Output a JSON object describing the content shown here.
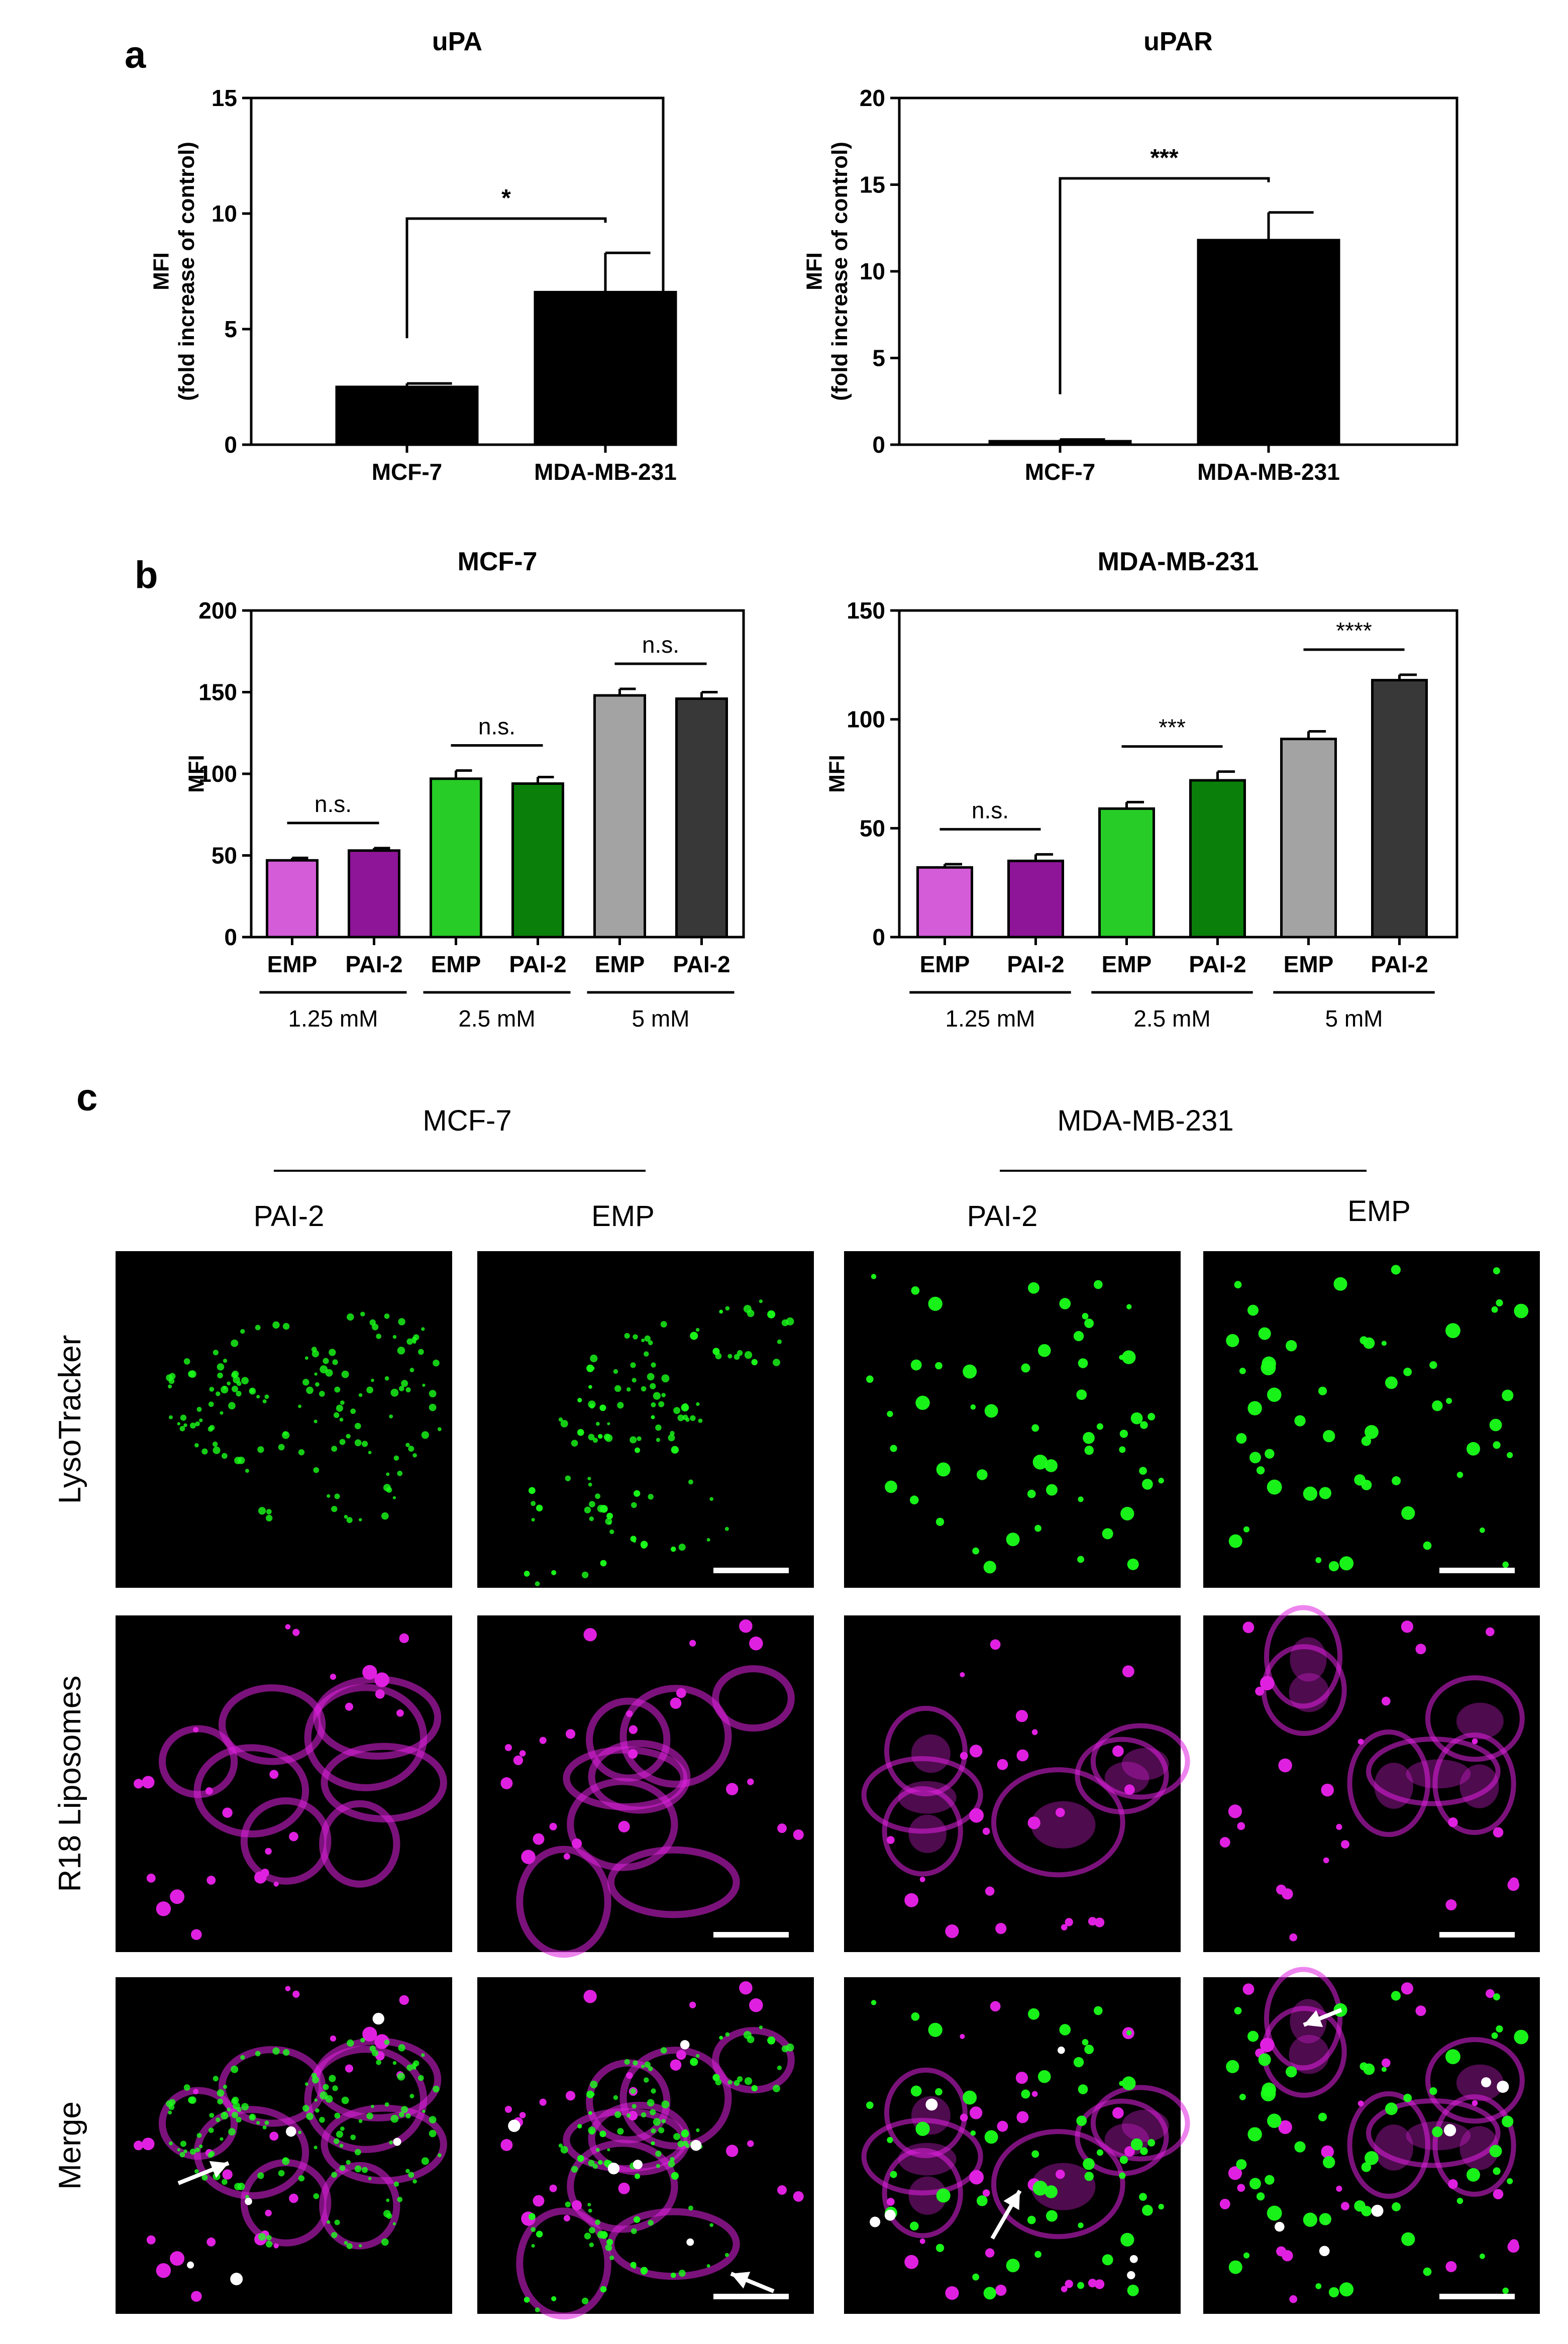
{
  "panel_labels": {
    "a": "a",
    "b": "b",
    "c": "c"
  },
  "chart_data": [
    {
      "type": "bar",
      "panel": "a",
      "title": "uPA",
      "ylabel": [
        "MFI",
        "(fold increase of control)"
      ],
      "categories": [
        "MCF-7",
        "MDA-MB-231"
      ],
      "values": [
        2.5,
        6.6
      ],
      "errors": [
        0.15,
        1.7
      ],
      "ylim": [
        0,
        15
      ],
      "yticks": [
        0,
        5,
        10,
        15
      ],
      "bar_colors": [
        "#000000",
        "#000000"
      ],
      "significance": [
        {
          "from": 0,
          "to": 1,
          "label": "*"
        }
      ],
      "grid": false
    },
    {
      "type": "bar",
      "panel": "a",
      "title": "uPAR",
      "ylabel": [
        "MFI",
        "(fold increase of control)"
      ],
      "categories": [
        "MCF-7",
        "MDA-MB-231"
      ],
      "values": [
        0.2,
        11.8
      ],
      "errors": [
        0.1,
        1.6
      ],
      "ylim": [
        0,
        20
      ],
      "yticks": [
        0,
        5,
        10,
        15,
        20
      ],
      "bar_colors": [
        "#000000",
        "#000000"
      ],
      "significance": [
        {
          "from": 0,
          "to": 1,
          "label": "***"
        }
      ],
      "grid": false
    },
    {
      "type": "bar",
      "panel": "b",
      "title": "MCF-7",
      "ylabel": [
        "MFI"
      ],
      "categories": [
        "EMP",
        "PAI-2",
        "EMP",
        "PAI-2",
        "EMP",
        "PAI-2"
      ],
      "values": [
        47,
        53,
        97,
        94,
        148,
        146
      ],
      "errors": [
        1.5,
        1.5,
        5,
        4,
        4,
        4
      ],
      "ylim": [
        0,
        200
      ],
      "yticks": [
        0,
        50,
        100,
        150,
        200
      ],
      "bar_colors": [
        "#d45cd8",
        "#8e1598",
        "#27cc27",
        "#0a800a",
        "#a3a3a3",
        "#383838"
      ],
      "groups": [
        {
          "label": "1.25 mM",
          "from": 0,
          "to": 1
        },
        {
          "label": "2.5 mM",
          "from": 2,
          "to": 3
        },
        {
          "label": "5 mM",
          "from": 4,
          "to": 5
        }
      ],
      "significance": [
        {
          "from": 0,
          "to": 1,
          "label": "n.s."
        },
        {
          "from": 2,
          "to": 3,
          "label": "n.s."
        },
        {
          "from": 4,
          "to": 5,
          "label": "n.s."
        }
      ],
      "grid": false
    },
    {
      "type": "bar",
      "panel": "b",
      "title": "MDA-MB-231",
      "ylabel": [
        "MFI"
      ],
      "categories": [
        "EMP",
        "PAI-2",
        "EMP",
        "PAI-2",
        "EMP",
        "PAI-2"
      ],
      "values": [
        32,
        35,
        59,
        72,
        91,
        118
      ],
      "errors": [
        1.5,
        3,
        3,
        4,
        3.5,
        2.5
      ],
      "ylim": [
        0,
        150
      ],
      "yticks": [
        0,
        50,
        100,
        150
      ],
      "bar_colors": [
        "#d45cd8",
        "#8e1598",
        "#27cc27",
        "#0a800a",
        "#a3a3a3",
        "#383838"
      ],
      "groups": [
        {
          "label": "1.25 mM",
          "from": 0,
          "to": 1
        },
        {
          "label": "2.5 mM",
          "from": 2,
          "to": 3
        },
        {
          "label": "5 mM",
          "from": 4,
          "to": 5
        }
      ],
      "significance": [
        {
          "from": 0,
          "to": 1,
          "label": "n.s."
        },
        {
          "from": 2,
          "to": 3,
          "label": "***"
        },
        {
          "from": 4,
          "to": 5,
          "label": "****"
        }
      ],
      "grid": false
    }
  ],
  "micrographs": {
    "cell_lines": [
      "MCF-7",
      "MDA-MB-231"
    ],
    "columns": [
      "PAI-2",
      "EMP",
      "PAI-2",
      "EMP"
    ],
    "rows": [
      "LysoTracker",
      "R18 Liposomes",
      "Merge"
    ],
    "colors": {
      "lysotracker": "#1aff1a",
      "r18": "#e020e0",
      "colocalized": "#ffffff",
      "background": "#000000"
    }
  }
}
